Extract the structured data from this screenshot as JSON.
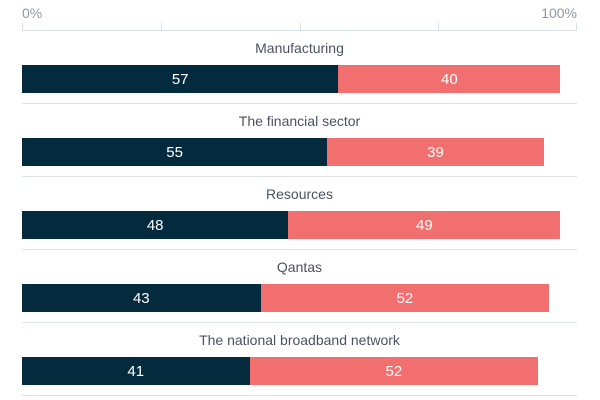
{
  "colors": {
    "segment_dark": "#042a3e",
    "segment_pink": "#f1706f",
    "axis_label": "#8d96a7",
    "axis_line": "#d9dfe6",
    "separator": "#dde3e9",
    "category_label": "#4a5260",
    "value_label": "#ffffff",
    "background": "#ffffff"
  },
  "chart_data": {
    "type": "bar",
    "orientation": "horizontal-stacked",
    "title": "",
    "axis": {
      "min_label": "0%",
      "max_label": "100%",
      "range": [
        0,
        100
      ],
      "tick_percents": [
        0,
        25,
        50,
        75,
        100
      ],
      "position": "top",
      "grid": false,
      "legend": "none"
    },
    "categories": [
      "Manufacturing",
      "The financial sector",
      "Resources",
      "Qantas",
      "The national broadband network"
    ],
    "series": [
      {
        "name": "dark-navy-segment",
        "color": "#042a3e",
        "values": [
          57,
          55,
          48,
          43,
          41
        ]
      },
      {
        "name": "coral-pink-segment",
        "color": "#f1706f",
        "values": [
          40,
          39,
          49,
          52,
          52
        ]
      }
    ]
  }
}
